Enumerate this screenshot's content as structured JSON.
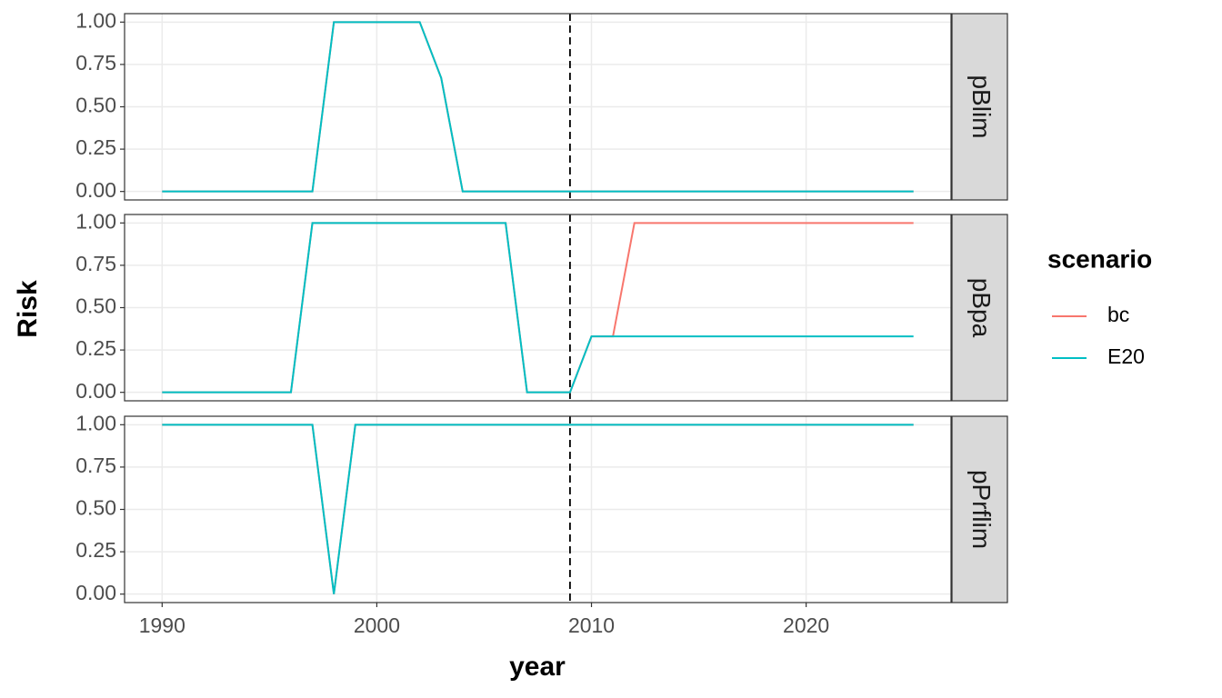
{
  "chart_data": {
    "type": "line",
    "xlabel": "year",
    "ylabel": "Risk",
    "legend_title": "scenario",
    "x": [
      1990,
      1991,
      1992,
      1993,
      1994,
      1995,
      1996,
      1997,
      1998,
      1999,
      2000,
      2001,
      2002,
      2003,
      2004,
      2005,
      2006,
      2007,
      2008,
      2009,
      2010,
      2011,
      2012,
      2013,
      2014,
      2015,
      2016,
      2017,
      2018,
      2019,
      2020,
      2021,
      2022,
      2023,
      2024,
      2025
    ],
    "xlim": [
      1988.25,
      2026.75
    ],
    "xticks": [
      1990,
      2000,
      2010,
      2020
    ],
    "ylim": [
      -0.05,
      1.05
    ],
    "yticks": [
      {
        "value": 0,
        "label": "0.00"
      },
      {
        "value": 0.25,
        "label": "0.25"
      },
      {
        "value": 0.5,
        "label": "0.50"
      },
      {
        "value": 0.75,
        "label": "0.75"
      },
      {
        "value": 1,
        "label": "1.00"
      }
    ],
    "vline": 2009,
    "grid": true,
    "legend_names": [
      "bc",
      "E20"
    ],
    "legend_colors": [
      "#F8766D",
      "#00BFC4"
    ],
    "facets": [
      {
        "label": "pBlim",
        "series": [
          {
            "name": "bc",
            "color": "#F8766D",
            "values": [
              0,
              0,
              0,
              0,
              0,
              0,
              0,
              0,
              1,
              1,
              1,
              1,
              1,
              0.67,
              0,
              0,
              0,
              0,
              0,
              0,
              0,
              0,
              0,
              0,
              0,
              0,
              0,
              0,
              0,
              0,
              0,
              0,
              0,
              0,
              0,
              0
            ]
          },
          {
            "name": "E20",
            "color": "#00BFC4",
            "values": [
              0,
              0,
              0,
              0,
              0,
              0,
              0,
              0,
              1,
              1,
              1,
              1,
              1,
              0.67,
              0,
              0,
              0,
              0,
              0,
              0,
              0,
              0,
              0,
              0,
              0,
              0,
              0,
              0,
              0,
              0,
              0,
              0,
              0,
              0,
              0,
              0
            ]
          }
        ]
      },
      {
        "label": "pBpa",
        "series": [
          {
            "name": "bc",
            "color": "#F8766D",
            "values": [
              0,
              0,
              0,
              0,
              0,
              0,
              0,
              1,
              1,
              1,
              1,
              1,
              1,
              1,
              1,
              1,
              1,
              0,
              0,
              0,
              0.33,
              0.33,
              1,
              1,
              1,
              1,
              1,
              1,
              1,
              1,
              1,
              1,
              1,
              1,
              1,
              1
            ]
          },
          {
            "name": "E20",
            "color": "#00BFC4",
            "values": [
              0,
              0,
              0,
              0,
              0,
              0,
              0,
              1,
              1,
              1,
              1,
              1,
              1,
              1,
              1,
              1,
              1,
              0,
              0,
              0,
              0.33,
              0.33,
              0.33,
              0.33,
              0.33,
              0.33,
              0.33,
              0.33,
              0.33,
              0.33,
              0.33,
              0.33,
              0.33,
              0.33,
              0.33,
              0.33
            ]
          }
        ]
      },
      {
        "label": "pPrflim",
        "series": [
          {
            "name": "bc",
            "color": "#F8766D",
            "values": [
              1,
              1,
              1,
              1,
              1,
              1,
              1,
              1,
              0,
              1,
              1,
              1,
              1,
              1,
              1,
              1,
              1,
              1,
              1,
              1,
              1,
              1,
              1,
              1,
              1,
              1,
              1,
              1,
              1,
              1,
              1,
              1,
              1,
              1,
              1,
              1
            ]
          },
          {
            "name": "E20",
            "color": "#00BFC4",
            "values": [
              1,
              1,
              1,
              1,
              1,
              1,
              1,
              1,
              0,
              1,
              1,
              1,
              1,
              1,
              1,
              1,
              1,
              1,
              1,
              1,
              1,
              1,
              1,
              1,
              1,
              1,
              1,
              1,
              1,
              1,
              1,
              1,
              1,
              1,
              1,
              1
            ]
          }
        ]
      }
    ]
  }
}
